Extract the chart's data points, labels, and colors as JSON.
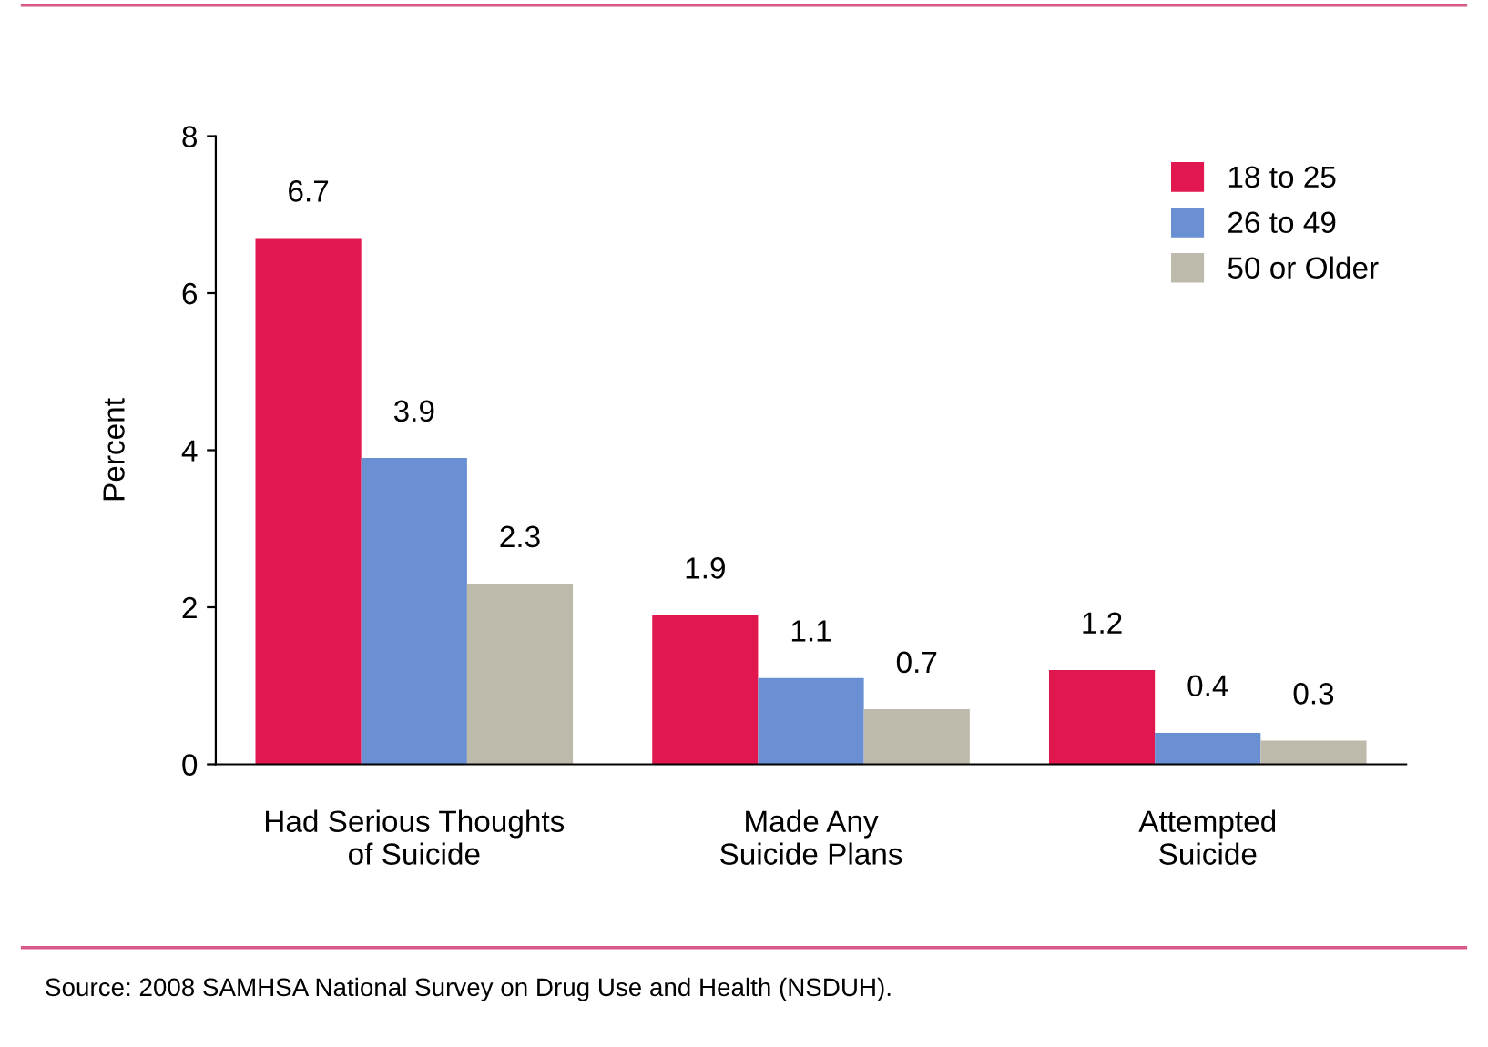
{
  "chart_data": {
    "type": "bar",
    "ylabel": "Percent",
    "categories": [
      "Had Serious Thoughts\nof Suicide",
      "Made Any\nSuicide Plans",
      "Attempted\nSuicide"
    ],
    "series": [
      {
        "name": "18 to 25",
        "color": "#e0184f",
        "values": [
          6.7,
          1.9,
          1.2
        ]
      },
      {
        "name": "26 to 49",
        "color": "#6a8fd2",
        "values": [
          3.9,
          1.1,
          0.4
        ]
      },
      {
        "name": "50 or Older",
        "color": "#bdb9ab",
        "values": [
          2.3,
          0.7,
          0.3
        ]
      }
    ],
    "ylim": [
      0,
      8
    ],
    "yticks": [
      0,
      2,
      4,
      6,
      8
    ],
    "data_labels": true,
    "grid": false,
    "legend": "top right",
    "annotations": [
      "Source: 2008 SAMHSA National Survey on Drug Use and Health (NSDUH)."
    ]
  }
}
